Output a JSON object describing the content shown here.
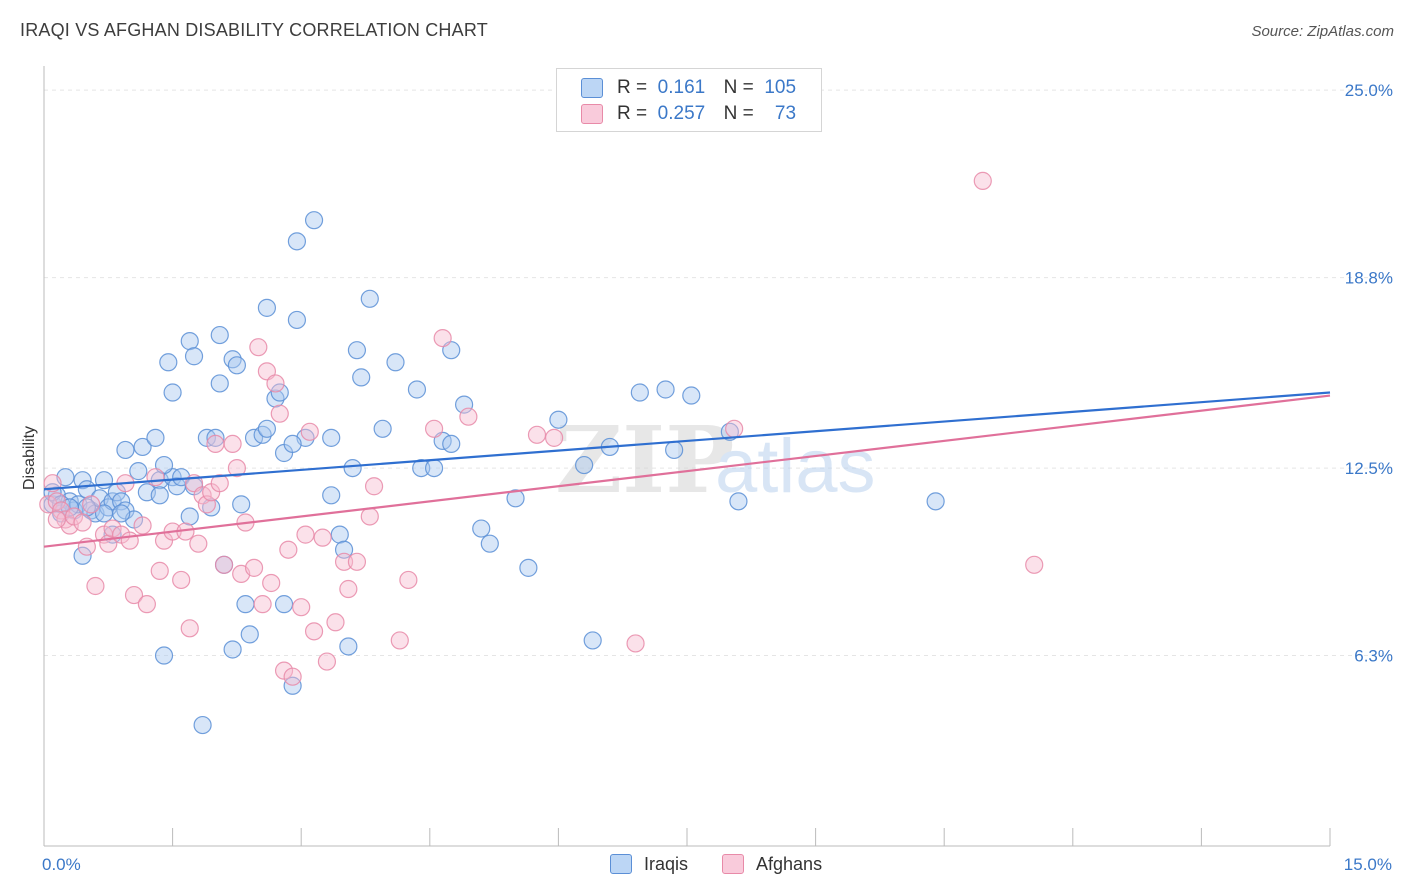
{
  "header": {
    "title": "IRAQI VS AFGHAN DISABILITY CORRELATION CHART",
    "source": "Source: ZipAtlas.com"
  },
  "legend": {
    "rows": [
      {
        "r_label": "R =",
        "r_value": "0.161",
        "n_label": "N =",
        "n_value": "105"
      },
      {
        "r_label": "R =",
        "r_value": "0.257",
        "n_label": "N =",
        "n_value": "73"
      }
    ],
    "bottom": [
      {
        "label": "Iraqis"
      },
      {
        "label": "Afghans"
      }
    ]
  },
  "watermark": {
    "zip": "ZIP",
    "atlas": "atlas"
  },
  "colors": {
    "iraqis_fill": "#a8c8f0",
    "iraqis_stroke": "#5b8fd6",
    "iraqis_line": "#2f6fd0",
    "afghans_fill": "#f7bcd0",
    "afghans_stroke": "#e88aa8",
    "afghans_line": "#e0709a",
    "tick_text": "#3b78c8",
    "grid": "#e5e5e5"
  },
  "chart_data": {
    "type": "scatter",
    "title": "IRAQI VS AFGHAN DISABILITY CORRELATION CHART",
    "xlabel": "",
    "ylabel": "Disability",
    "xlim": [
      0,
      15
    ],
    "ylim": [
      0,
      25.8
    ],
    "x_tick_labels": [
      "0.0%",
      "15.0%"
    ],
    "y_ticks": [
      6.3,
      12.5,
      18.8,
      25.0
    ],
    "y_tick_labels": [
      "6.3%",
      "12.5%",
      "18.8%",
      "25.0%"
    ],
    "grid": "horizontal dashed",
    "legend_placement": "top-center",
    "series": [
      {
        "name": "Iraqis",
        "r": 0.161,
        "n": 105,
        "trend": {
          "x": [
            0,
            15
          ],
          "y": [
            11.8,
            15.0
          ]
        },
        "points": [
          [
            0.1,
            11.3
          ],
          [
            0.15,
            11.6
          ],
          [
            0.2,
            11.0
          ],
          [
            0.25,
            12.2
          ],
          [
            0.3,
            11.4
          ],
          [
            0.35,
            11.1
          ],
          [
            0.4,
            11.3
          ],
          [
            0.45,
            12.1
          ],
          [
            0.5,
            11.8
          ],
          [
            0.55,
            11.1
          ],
          [
            0.6,
            11.0
          ],
          [
            0.65,
            11.5
          ],
          [
            0.7,
            12.1
          ],
          [
            0.75,
            11.2
          ],
          [
            0.8,
            11.4
          ],
          [
            0.85,
            11.7
          ],
          [
            0.9,
            11.4
          ],
          [
            0.95,
            11.1
          ],
          [
            0.1,
            11.7
          ],
          [
            0.2,
            11.3
          ],
          [
            0.45,
            9.6
          ],
          [
            0.5,
            11.2
          ],
          [
            0.95,
            13.1
          ],
          [
            1.1,
            12.4
          ],
          [
            1.15,
            13.2
          ],
          [
            1.3,
            13.5
          ],
          [
            1.35,
            12.1
          ],
          [
            1.5,
            12.2
          ],
          [
            1.55,
            11.9
          ],
          [
            1.6,
            12.2
          ],
          [
            1.2,
            11.7
          ],
          [
            1.4,
            12.6
          ],
          [
            0.8,
            10.3
          ],
          [
            1.05,
            10.8
          ],
          [
            1.7,
            10.9
          ],
          [
            1.75,
            11.9
          ],
          [
            1.95,
            11.2
          ],
          [
            1.9,
            13.5
          ],
          [
            2.3,
            11.3
          ],
          [
            2.35,
            8.0
          ],
          [
            2.4,
            7.0
          ],
          [
            2.1,
            9.3
          ],
          [
            2.2,
            6.5
          ],
          [
            1.4,
            6.3
          ],
          [
            1.85,
            4.0
          ],
          [
            1.5,
            15.0
          ],
          [
            1.7,
            16.7
          ],
          [
            1.75,
            16.2
          ],
          [
            1.45,
            16.0
          ],
          [
            2.05,
            15.3
          ],
          [
            2.05,
            16.9
          ],
          [
            2.2,
            16.1
          ],
          [
            2.25,
            15.9
          ],
          [
            2.45,
            13.5
          ],
          [
            2.55,
            13.6
          ],
          [
            2.6,
            17.8
          ],
          [
            2.6,
            13.8
          ],
          [
            2.7,
            14.8
          ],
          [
            2.75,
            15.0
          ],
          [
            2.8,
            13.0
          ],
          [
            2.8,
            8.0
          ],
          [
            2.9,
            5.3
          ],
          [
            2.95,
            17.4
          ],
          [
            2.95,
            20.0
          ],
          [
            3.05,
            13.5
          ],
          [
            3.15,
            20.7
          ],
          [
            3.35,
            11.6
          ],
          [
            3.45,
            10.3
          ],
          [
            3.5,
            9.8
          ],
          [
            3.55,
            6.6
          ],
          [
            3.6,
            12.5
          ],
          [
            3.65,
            16.4
          ],
          [
            3.7,
            15.5
          ],
          [
            3.8,
            18.1
          ],
          [
            3.95,
            13.8
          ],
          [
            4.1,
            16.0
          ],
          [
            4.35,
            15.1
          ],
          [
            4.4,
            12.5
          ],
          [
            4.55,
            12.5
          ],
          [
            4.65,
            13.4
          ],
          [
            4.75,
            13.3
          ],
          [
            4.75,
            16.4
          ],
          [
            4.9,
            14.6
          ],
          [
            5.1,
            10.5
          ],
          [
            5.2,
            10.0
          ],
          [
            5.5,
            11.5
          ],
          [
            5.65,
            9.2
          ],
          [
            6.0,
            14.1
          ],
          [
            6.3,
            12.6
          ],
          [
            6.4,
            6.8
          ],
          [
            6.6,
            13.2
          ],
          [
            6.95,
            15.0
          ],
          [
            7.25,
            15.1
          ],
          [
            7.55,
            14.9
          ],
          [
            7.35,
            13.1
          ],
          [
            8.0,
            13.7
          ],
          [
            8.1,
            11.4
          ],
          [
            10.4,
            11.4
          ],
          [
            2.0,
            13.5
          ],
          [
            1.35,
            11.6
          ],
          [
            0.9,
            11.0
          ],
          [
            0.7,
            11.0
          ],
          [
            0.3,
            11.2
          ],
          [
            3.35,
            13.5
          ],
          [
            2.9,
            13.3
          ]
        ]
      },
      {
        "name": "Afghans",
        "r": 0.257,
        "n": 73,
        "trend": {
          "x": [
            0,
            15
          ],
          "y": [
            9.9,
            14.9
          ]
        },
        "points": [
          [
            0.05,
            11.3
          ],
          [
            0.1,
            12.0
          ],
          [
            0.15,
            11.4
          ],
          [
            0.2,
            11.1
          ],
          [
            0.25,
            10.8
          ],
          [
            0.3,
            10.6
          ],
          [
            0.35,
            10.9
          ],
          [
            0.45,
            10.7
          ],
          [
            0.5,
            9.9
          ],
          [
            0.55,
            11.3
          ],
          [
            0.6,
            8.6
          ],
          [
            0.7,
            10.3
          ],
          [
            0.75,
            10.0
          ],
          [
            0.8,
            10.5
          ],
          [
            0.9,
            10.3
          ],
          [
            0.95,
            12.0
          ],
          [
            1.0,
            10.1
          ],
          [
            1.05,
            8.3
          ],
          [
            1.15,
            10.6
          ],
          [
            1.2,
            8.0
          ],
          [
            1.3,
            12.2
          ],
          [
            1.35,
            9.1
          ],
          [
            1.4,
            10.1
          ],
          [
            1.5,
            10.4
          ],
          [
            1.6,
            8.8
          ],
          [
            1.65,
            10.4
          ],
          [
            1.7,
            7.2
          ],
          [
            1.75,
            12.0
          ],
          [
            1.8,
            10.0
          ],
          [
            1.85,
            11.6
          ],
          [
            1.9,
            11.3
          ],
          [
            1.95,
            11.7
          ],
          [
            2.0,
            13.3
          ],
          [
            2.05,
            12.0
          ],
          [
            2.1,
            9.3
          ],
          [
            2.2,
            13.3
          ],
          [
            2.25,
            12.5
          ],
          [
            2.3,
            9.0
          ],
          [
            2.35,
            10.7
          ],
          [
            2.45,
            9.2
          ],
          [
            2.5,
            16.5
          ],
          [
            2.55,
            8.0
          ],
          [
            2.6,
            15.7
          ],
          [
            2.65,
            8.7
          ],
          [
            2.7,
            15.3
          ],
          [
            2.75,
            14.3
          ],
          [
            2.8,
            5.8
          ],
          [
            2.85,
            9.8
          ],
          [
            2.9,
            5.6
          ],
          [
            3.0,
            7.9
          ],
          [
            3.05,
            10.3
          ],
          [
            3.1,
            13.7
          ],
          [
            3.15,
            7.1
          ],
          [
            3.25,
            10.2
          ],
          [
            3.3,
            6.1
          ],
          [
            3.4,
            7.4
          ],
          [
            3.5,
            9.4
          ],
          [
            3.55,
            8.5
          ],
          [
            3.65,
            9.4
          ],
          [
            3.8,
            10.9
          ],
          [
            3.85,
            11.9
          ],
          [
            4.15,
            6.8
          ],
          [
            4.25,
            8.8
          ],
          [
            4.55,
            13.8
          ],
          [
            4.65,
            16.8
          ],
          [
            4.95,
            14.2
          ],
          [
            5.75,
            13.6
          ],
          [
            5.95,
            13.5
          ],
          [
            6.9,
            6.7
          ],
          [
            8.05,
            13.8
          ],
          [
            10.95,
            22.0
          ],
          [
            11.55,
            9.3
          ],
          [
            0.15,
            10.8
          ]
        ]
      }
    ]
  }
}
